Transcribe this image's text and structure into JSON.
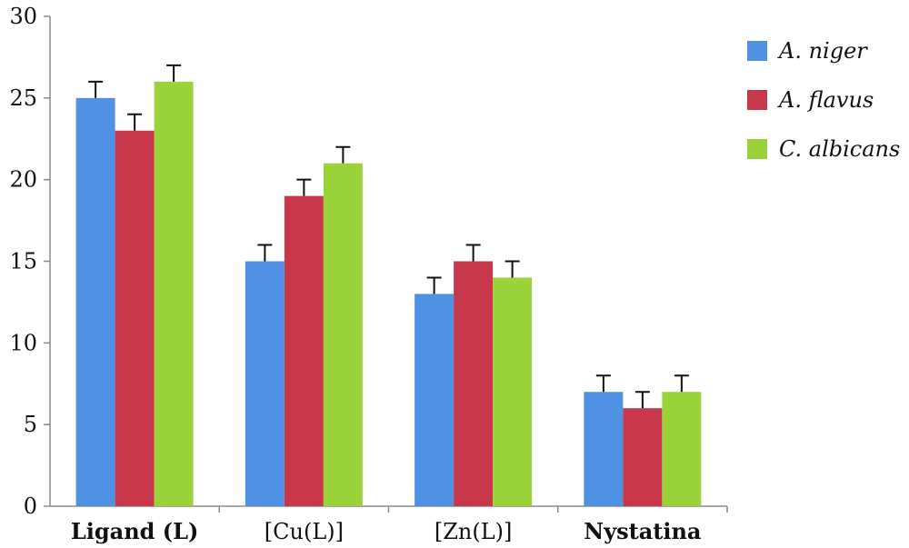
{
  "chart_data": {
    "type": "bar",
    "title": "",
    "xlabel": "",
    "ylabel": "",
    "ylim": [
      0,
      30
    ],
    "yticks": [
      0,
      5,
      10,
      15,
      20,
      25,
      30
    ],
    "categories": [
      "Ligand (L)",
      "[Cu(L)]",
      "[Zn(L)]",
      "Nystatina"
    ],
    "category_bold": [
      true,
      false,
      false,
      true
    ],
    "series": [
      {
        "name": "A. niger",
        "color": "#4f92e3",
        "values": [
          25,
          15,
          13,
          7
        ],
        "errors": [
          1,
          1,
          1,
          1
        ]
      },
      {
        "name": "A. flavus",
        "color": "#c8384a",
        "values": [
          23,
          19,
          15,
          6
        ],
        "errors": [
          1,
          1,
          1,
          1
        ]
      },
      {
        "name": "C. albicans",
        "color": "#9ad23a",
        "values": [
          26,
          21,
          14,
          7
        ],
        "errors": [
          1,
          1,
          1,
          1
        ]
      }
    ],
    "grid": false,
    "legend_position": "right"
  }
}
